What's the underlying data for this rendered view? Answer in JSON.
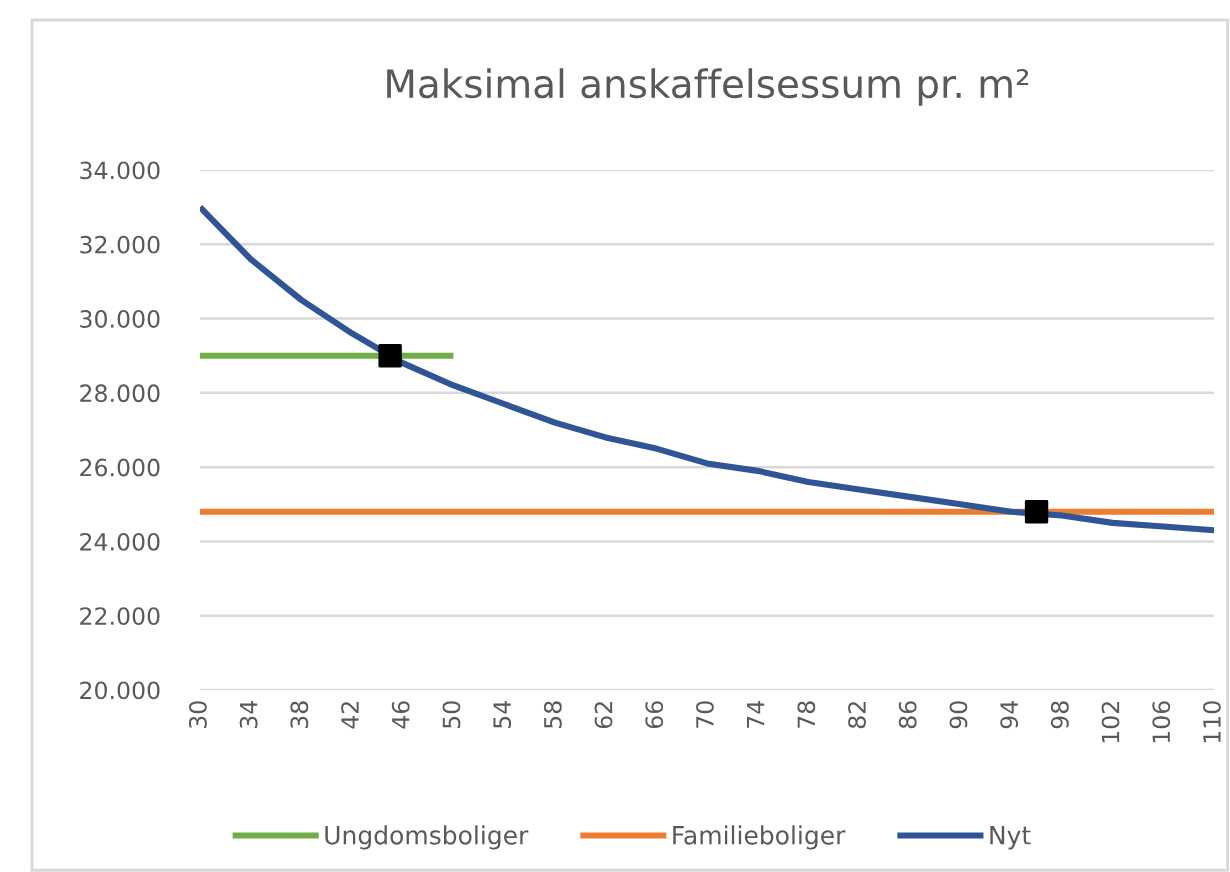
{
  "chart_data": {
    "type": "line",
    "title": "Maksimal anskaffelsessum pr. m²",
    "xlim": [
      30,
      110
    ],
    "xticks": [
      30,
      34,
      38,
      42,
      46,
      50,
      54,
      58,
      62,
      66,
      70,
      74,
      78,
      82,
      86,
      90,
      94,
      98,
      102,
      106,
      110
    ],
    "ylim": [
      20000,
      34000
    ],
    "yticks": [
      {
        "value": 20000,
        "label": "20.000"
      },
      {
        "value": 22000,
        "label": "22.000"
      },
      {
        "value": 24000,
        "label": "24.000"
      },
      {
        "value": 26000,
        "label": "26.000"
      },
      {
        "value": 28000,
        "label": "28.000"
      },
      {
        "value": 30000,
        "label": "30.000"
      },
      {
        "value": 32000,
        "label": "32.000"
      },
      {
        "value": 34000,
        "label": "34.000"
      }
    ],
    "grid": "y",
    "legend": "bottom",
    "series": [
      {
        "name": "Ungdomsboliger",
        "color": "#70ad47",
        "x": [
          30,
          50
        ],
        "values": [
          29000,
          29000
        ]
      },
      {
        "name": "Familieboliger",
        "color": "#ed7d31",
        "x": [
          30,
          110
        ],
        "values": [
          24800,
          24800
        ]
      },
      {
        "name": "Nyt",
        "color": "#2f5597",
        "x": [
          30,
          34,
          38,
          42,
          46,
          50,
          54,
          58,
          62,
          66,
          70,
          74,
          78,
          82,
          86,
          90,
          94,
          98,
          102,
          106,
          110
        ],
        "values": [
          33000,
          31600,
          30500,
          29600,
          28800,
          28200,
          27700,
          27200,
          26800,
          26500,
          26100,
          25900,
          25600,
          25400,
          25200,
          25000,
          24800,
          24700,
          24500,
          24400,
          24300
        ]
      },
      {
        "type": "scatter",
        "color": "#000000",
        "marker": "square",
        "x": [
          45,
          96
        ],
        "values": [
          29000,
          24800
        ]
      }
    ]
  }
}
